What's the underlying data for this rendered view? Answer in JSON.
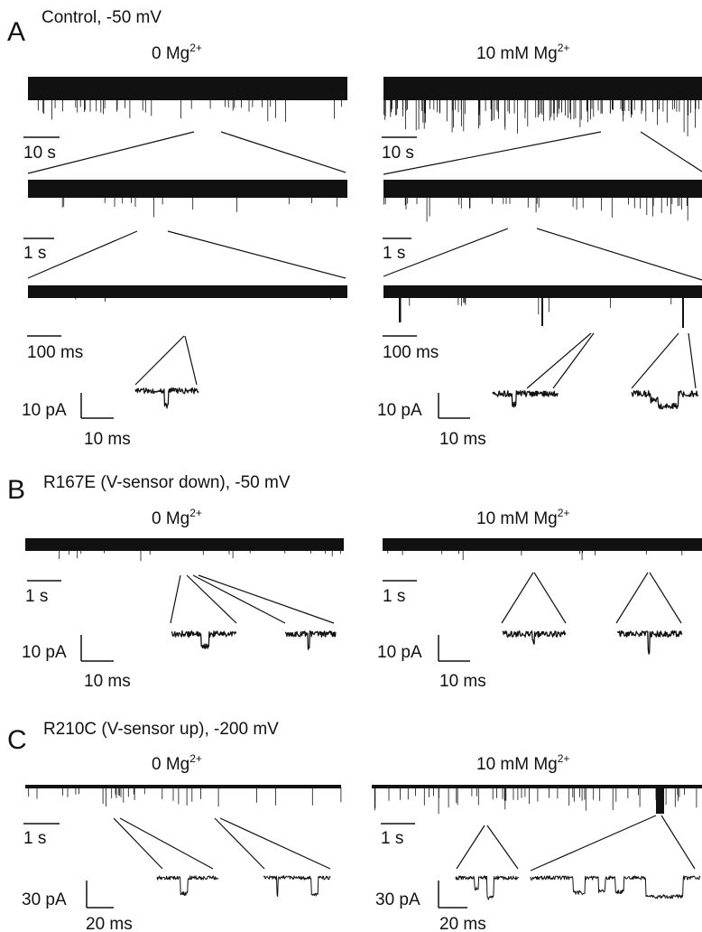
{
  "panels": [
    {
      "id": "A",
      "letter": "A",
      "title": "Control, -50 mV"
    },
    {
      "id": "B",
      "letter": "B",
      "title": "R167E (V-sensor down), -50 mV"
    },
    {
      "id": "C",
      "letter": "C",
      "title": "R210C (V-sensor up), -200 mV"
    }
  ],
  "conditions": {
    "zero_mg": {
      "base": "0 Mg",
      "sup": "2+"
    },
    "ten_mg": {
      "base": "10 mM Mg",
      "sup": "2+"
    }
  },
  "scale_bars": {
    "s10": "10 s",
    "s1": "1 s",
    "ms100": "100 ms",
    "pa10": "10 pA",
    "ms10": "10 ms",
    "pa30": "30 pA",
    "ms20": "20 ms"
  },
  "colors": {
    "trace": "#111111",
    "background": "#ffffff"
  }
}
